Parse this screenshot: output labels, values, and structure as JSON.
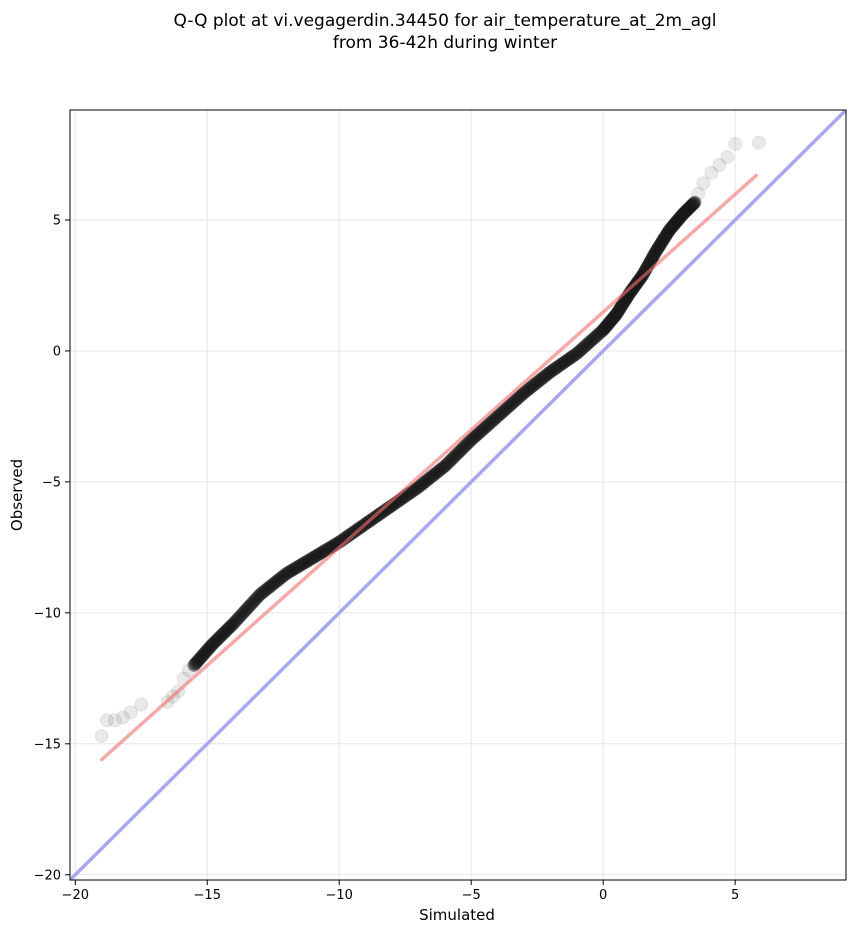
{
  "chart_data": {
    "type": "scatter",
    "title": [
      "Q-Q plot at vi.vegagerdin.34450 for air_temperature_at_2m_agl",
      "from 36-42h during winter"
    ],
    "xlabel": "Simulated",
    "ylabel": "Observed",
    "xlim": [
      -20.2,
      9.2
    ],
    "ylim": [
      -20.2,
      9.2
    ],
    "xticks": [
      -20,
      -15,
      -10,
      -5,
      0,
      5
    ],
    "yticks": [
      -20,
      -15,
      -10,
      -5,
      0,
      5
    ],
    "xtick_labels": [
      "−20",
      "−15",
      "−10",
      "−5",
      "0",
      "5"
    ],
    "ytick_labels": [
      "−20",
      "−15",
      "−10",
      "−5",
      "0",
      "5"
    ],
    "grid": true,
    "legend": false,
    "colors": {
      "points": "#1a1a1a",
      "fit_line": "#f4a0a0",
      "identity_line": "#a8a8f2",
      "grid": "#e6e6e6"
    },
    "sparse_points": {
      "x": [
        -19.0,
        -18.8,
        -18.5,
        -18.2,
        -17.9,
        -17.5,
        -16.5,
        -16.3,
        -16.1,
        -15.9,
        -15.7,
        -15.5,
        3.6,
        3.8,
        4.1,
        4.4,
        4.7,
        5.0,
        5.9
      ],
      "y": [
        -14.7,
        -14.1,
        -14.1,
        -14.0,
        -13.8,
        -13.5,
        -13.4,
        -13.2,
        -13.0,
        -12.5,
        -12.2,
        -12.0,
        6.0,
        6.4,
        6.8,
        7.1,
        7.4,
        7.9,
        7.95
      ]
    },
    "dense_curve": {
      "x": [
        -15.5,
        -14.8,
        -14.0,
        -13.0,
        -12.0,
        -11.0,
        -10.0,
        -9.0,
        -8.0,
        -7.0,
        -6.0,
        -5.0,
        -4.0,
        -3.0,
        -2.0,
        -1.0,
        0.0,
        0.5,
        1.0,
        1.5,
        2.0,
        2.5,
        3.0,
        3.5
      ],
      "y": [
        -12.0,
        -11.2,
        -10.4,
        -9.3,
        -8.5,
        -7.9,
        -7.3,
        -6.6,
        -5.9,
        -5.2,
        -4.4,
        -3.4,
        -2.5,
        -1.6,
        -0.8,
        -0.1,
        0.8,
        1.4,
        2.2,
        2.9,
        3.8,
        4.6,
        5.2,
        5.7
      ]
    },
    "fit_line": {
      "x": [
        -19.0,
        5.8
      ],
      "y": [
        -15.6,
        6.7
      ]
    },
    "identity_line": {
      "x": [
        -20.2,
        9.2
      ],
      "y": [
        -20.2,
        9.2
      ]
    }
  }
}
